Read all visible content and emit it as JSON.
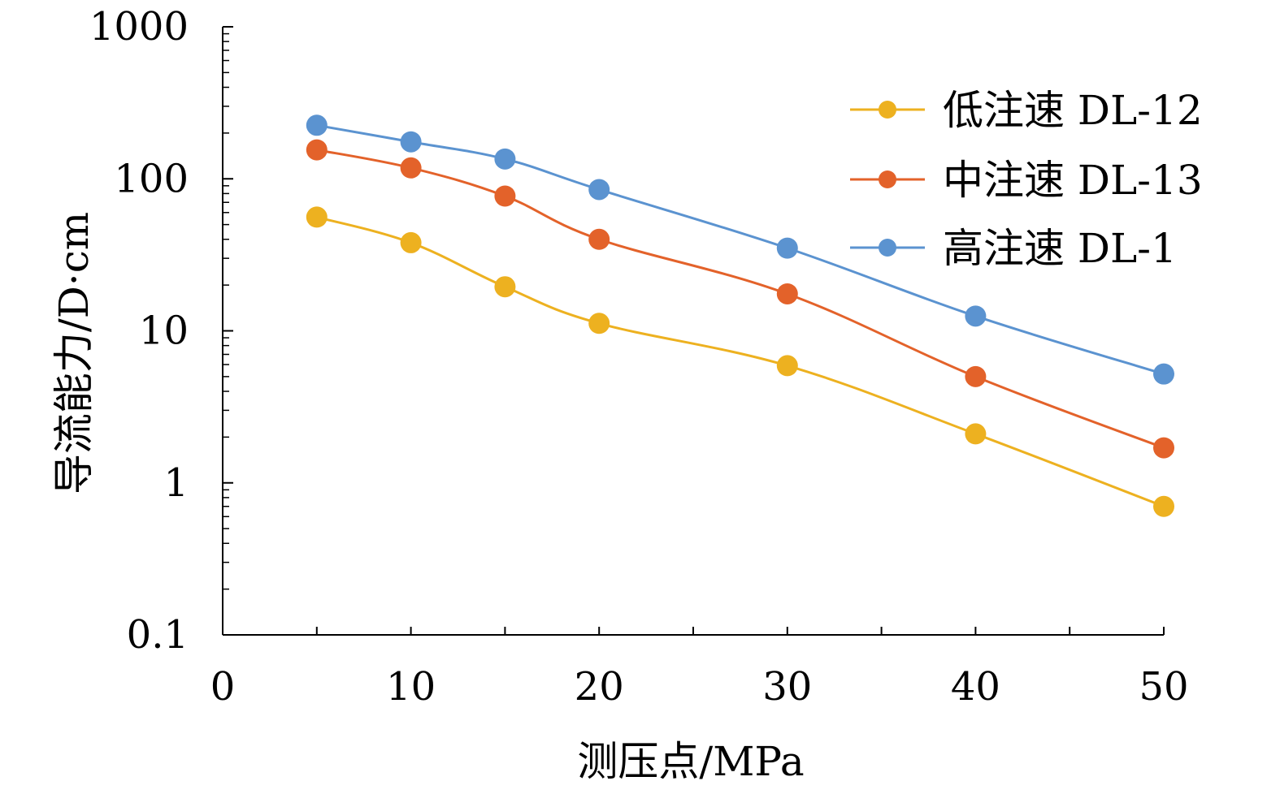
{
  "chart_data": {
    "type": "line",
    "title": "",
    "xlabel": "测压点/MPa",
    "ylabel": "导流能力/D·cm",
    "yscale": "log",
    "xlim": [
      0,
      50
    ],
    "ylim": [
      0.1,
      1000
    ],
    "x_ticks": [
      0,
      10,
      20,
      30,
      40,
      50
    ],
    "x_tick_labels": [
      "0",
      "10",
      "20",
      "30",
      "40",
      "50"
    ],
    "y_ticks": [
      0.1,
      1,
      10,
      100,
      1000
    ],
    "y_tick_labels": [
      "0.1",
      "1",
      "10",
      "100",
      "1000"
    ],
    "grid": false,
    "legend_position": "top-right",
    "series": [
      {
        "name": "低注速 DL-12",
        "color": "#EDB120",
        "x": [
          5,
          10,
          15,
          20,
          30,
          40,
          50
        ],
        "values": [
          56,
          38,
          19.5,
          11.2,
          5.9,
          2.1,
          0.7
        ]
      },
      {
        "name": "中注速 DL-13",
        "color": "#E3622A",
        "x": [
          5,
          10,
          15,
          20,
          30,
          40,
          50
        ],
        "values": [
          155,
          118,
          77,
          40,
          17.5,
          5,
          1.7
        ]
      },
      {
        "name": "高注速 DL-1",
        "color": "#5B93D0",
        "x": [
          5,
          10,
          15,
          20,
          30,
          40,
          50
        ],
        "values": [
          225,
          175,
          135,
          85,
          35,
          12.5,
          5.2
        ]
      }
    ]
  }
}
